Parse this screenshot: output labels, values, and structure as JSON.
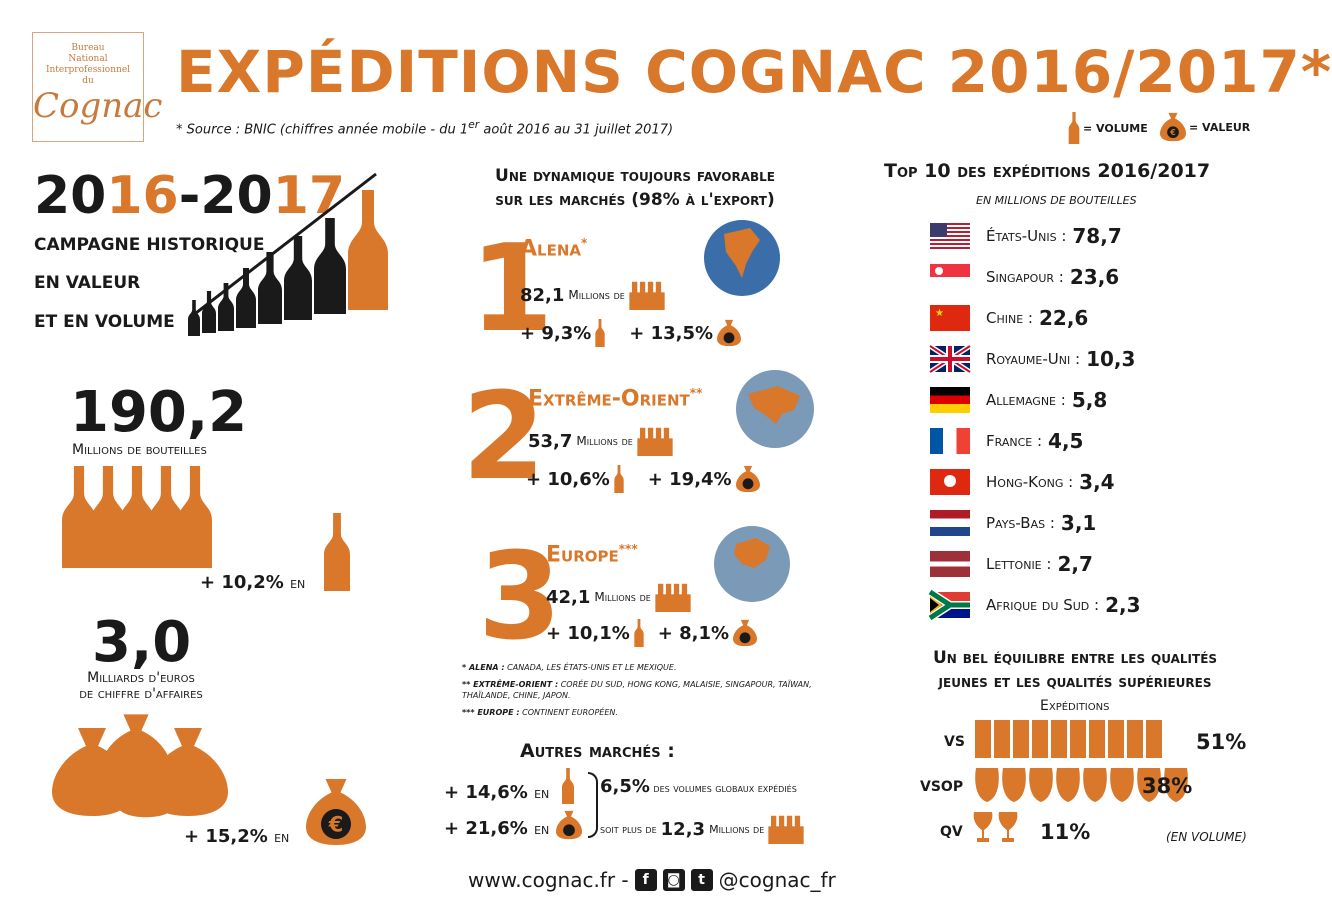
{
  "header": {
    "logo_line1": "Bureau",
    "logo_line2": "National",
    "logo_line3": "Interprofessionnel",
    "logo_line4": "du",
    "logo_word": "Cognac",
    "title": "EXPÉDITIONS COGNAC 2016/2017*",
    "source_pre": "* Source : BNIC (chiffres année mobile - du 1",
    "source_sup": "er",
    "source_post": " août 2016 au 31 juillet 2017)",
    "legend_volume": "= VOLUME",
    "legend_valeur": "= VALEUR",
    "euro_symbol": "€"
  },
  "left": {
    "year_a": "20",
    "year_b": "16",
    "year_c": "-20",
    "year_d": "17",
    "campaign_line1": "CAMPAGNE HISTORIQUE",
    "campaign_line2": "EN VALEUR",
    "campaign_line3": "ET EN VOLUME",
    "volume_number": "190,2",
    "volume_label": "Millions de bouteilles",
    "volume_growth": "+ 10,2%",
    "volume_growth_suffix": "EN",
    "value_number": "3,0",
    "value_label1": "Milliards d'euros",
    "value_label2": "de chiffre d'affaires",
    "value_growth": "+ 15,2%",
    "value_growth_suffix": "EN"
  },
  "middle": {
    "title_line1": "Une dynamique toujours favorable",
    "title_line2": "sur les marchés (98% à l'export)",
    "markets": [
      {
        "rank": "1",
        "name": "Alena",
        "sup": "*",
        "volume": "82,1",
        "volume_unit": "Millions de",
        "vol_growth": "+ 9,3%",
        "val_growth": "+ 13,5%"
      },
      {
        "rank": "2",
        "name": "Extrême-Orient",
        "sup": "**",
        "volume": "53,7",
        "volume_unit": "Millions de",
        "vol_growth": "+ 10,6%",
        "val_growth": "+ 19,4%"
      },
      {
        "rank": "3",
        "name": "Europe",
        "sup": "***",
        "volume": "42,1",
        "volume_unit": "Millions de",
        "vol_growth": "+ 10,1%",
        "val_growth": "+ 8,1%"
      }
    ],
    "note1_label": "* ALENA :",
    "note1_text": " CANADA, LES ÉTATS-UNIS ET LE MEXIQUE.",
    "note2_label": "** EXTRÊME-ORIENT :",
    "note2_text": " CORÉE DU SUD, HONG KONG, MALAISIE, SINGAPOUR, TAÏWAN, THAÏLANDE, CHINE, JAPON.",
    "note3_label": "*** EUROPE :",
    "note3_text": " CONTINENT EUROPÉEN.",
    "autres_title": "Autres marchés :",
    "autres_vol": "+ 14,6%",
    "autres_val": "+ 21,6%",
    "autres_suffix": "EN",
    "autres_share": "6,5%",
    "autres_share_text": "des volumes globaux expédiés",
    "autres_soit": "soit plus de",
    "autres_millions": "12,3",
    "autres_millions_unit": "Millions de"
  },
  "right": {
    "top_title": "Top 10 des expéditions 2016/2017",
    "top_sub": "EN MILLIONS DE BOUTEILLES",
    "countries": [
      {
        "name": "États-Unis :",
        "value": "78,7"
      },
      {
        "name": "Singapour :",
        "value": "23,6"
      },
      {
        "name": "Chine :",
        "value": "22,6"
      },
      {
        "name": "Royaume-Uni :",
        "value": "10,3"
      },
      {
        "name": "Allemagne :",
        "value": "5,8"
      },
      {
        "name": "France :",
        "value": "4,5"
      },
      {
        "name": "Hong-Kong :",
        "value": "3,4"
      },
      {
        "name": "Pays-Bas :",
        "value": "3,1"
      },
      {
        "name": "Lettonie :",
        "value": "2,7"
      },
      {
        "name": "Afrique du Sud :",
        "value": "2,3"
      }
    ],
    "eq_title_line1": "Un bel équilibre entre les qualités",
    "eq_title_line2": "jeunes et les qualités supérieures",
    "eq_sub": "Expéditions",
    "qualities": [
      {
        "label": "VS",
        "share": 51,
        "text": "51%"
      },
      {
        "label": "VSOP",
        "share": 38,
        "text": "38%"
      },
      {
        "label": "QV",
        "share": 11,
        "text": "11%"
      }
    ],
    "eq_note": "(EN VOLUME)"
  },
  "footer": {
    "site": "www.cognac.fr -",
    "handle": "@cognac_fr",
    "fb": "f",
    "ig": "◙",
    "tw": "t"
  },
  "colors": {
    "accent": "#d9772a",
    "dark": "#1a1a1a",
    "ocean": "#3b6ea8",
    "land": "#d9772a"
  }
}
